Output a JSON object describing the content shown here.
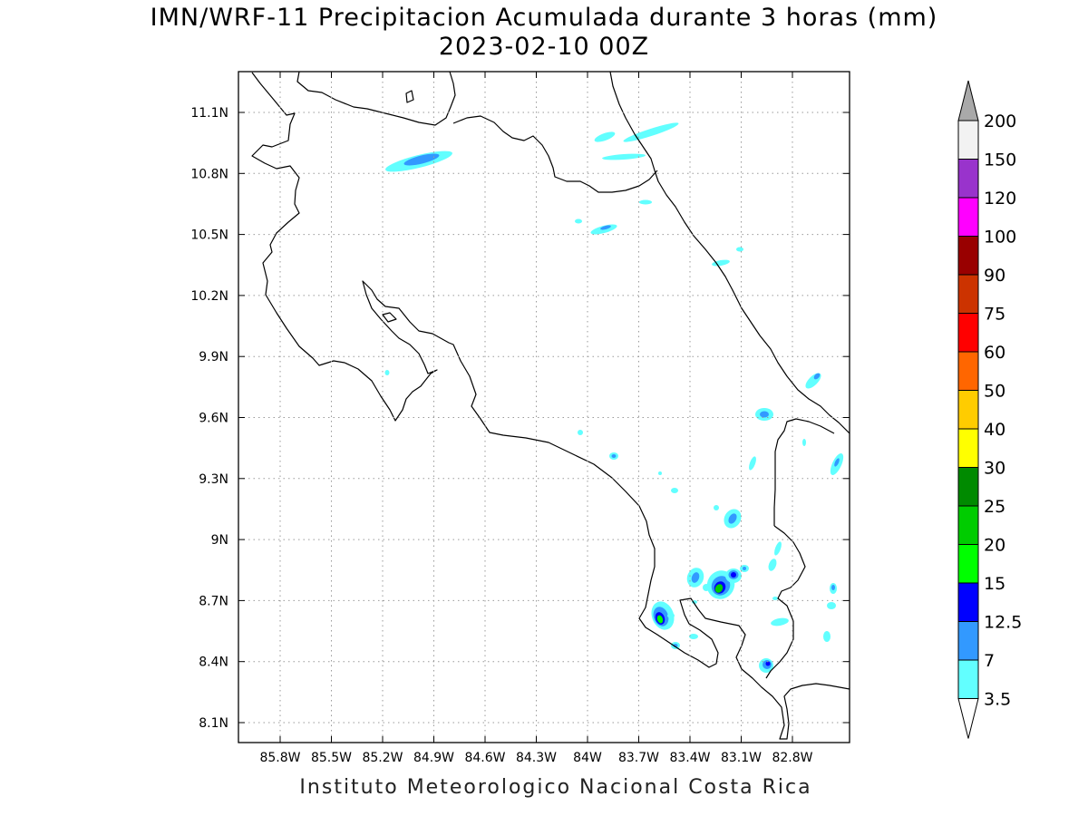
{
  "title": {
    "line1": "IMN/WRF-11 Precipitacion Acumulada durante 3 horas (mm)",
    "line2": "2023-02-10 00Z"
  },
  "credit": "Instituto Meteorologico Nacional Costa Rica",
  "map": {
    "lon_range": [
      -86.0,
      -83.0
    ],
    "lat_range": [
      8.0,
      11.3
    ],
    "x_ticks": [
      {
        "lon": -85.8,
        "label": "85.8W"
      },
      {
        "lon": -85.5,
        "label": "85.5W"
      },
      {
        "lon": -85.2,
        "label": "85.2W"
      },
      {
        "lon": -84.9,
        "label": "84.9W"
      },
      {
        "lon": -84.6,
        "label": "84.6W"
      },
      {
        "lon": -84.3,
        "label": "84.3W"
      },
      {
        "lon": -84.0,
        "label": "84W"
      },
      {
        "lon": -83.7,
        "label": "83.7W"
      },
      {
        "lon": -83.4,
        "label": "83.4W"
      },
      {
        "lon": -83.1,
        "label": "83.1W"
      },
      {
        "lon": -82.8,
        "label": "82.8W"
      }
    ],
    "y_ticks": [
      {
        "lat": 11.1,
        "label": "11.1N"
      },
      {
        "lat": 10.8,
        "label": "10.8N"
      },
      {
        "lat": 10.5,
        "label": "10.5N"
      },
      {
        "lat": 10.2,
        "label": "10.2N"
      },
      {
        "lat": 9.9,
        "label": "9.9N"
      },
      {
        "lat": 9.6,
        "label": "9.6N"
      },
      {
        "lat": 9.3,
        "label": "9.3N"
      },
      {
        "lat": 9.0,
        "label": "9N"
      },
      {
        "lat": 8.7,
        "label": "8.7N"
      },
      {
        "lat": 8.4,
        "label": "8.4N"
      },
      {
        "lat": 8.1,
        "label": "8.1N"
      }
    ],
    "grid": true,
    "grid_style": "dotted"
  },
  "colorbar": {
    "levels": [
      {
        "label": "3.5",
        "color": "#62ffff"
      },
      {
        "label": "7",
        "color": "#3299ff"
      },
      {
        "label": "12.5",
        "color": "#0000ff"
      },
      {
        "label": "15",
        "color": "#00ff00"
      },
      {
        "label": "20",
        "color": "#00cc00"
      },
      {
        "label": "25",
        "color": "#008a00"
      },
      {
        "label": "30",
        "color": "#ffff00"
      },
      {
        "label": "40",
        "color": "#ffcc00"
      },
      {
        "label": "50",
        "color": "#ff6600"
      },
      {
        "label": "60",
        "color": "#ff0000"
      },
      {
        "label": "75",
        "color": "#cc3300"
      },
      {
        "label": "90",
        "color": "#990000"
      },
      {
        "label": "100",
        "color": "#ff00ff"
      },
      {
        "label": "120",
        "color": "#9933cc"
      },
      {
        "label": "150",
        "color": "#f2f2f2"
      },
      {
        "label": "200",
        "color": "#a9a9a9"
      }
    ],
    "under_color": "#ffffff",
    "over_color": "#a9a9a9"
  },
  "precip_cells": [
    {
      "lon": -84.95,
      "lat": 10.86,
      "value": 7
    },
    {
      "lon": -83.92,
      "lat": 10.52,
      "value": 3.5
    },
    {
      "lon": -83.82,
      "lat": 9.42,
      "value": 7
    },
    {
      "lon": -83.5,
      "lat": 9.23,
      "value": 7
    },
    {
      "lon": -83.18,
      "lat": 9.1,
      "value": 7
    },
    {
      "lon": -83.43,
      "lat": 8.82,
      "value": 7
    },
    {
      "lon": -83.23,
      "lat": 8.76,
      "value": 15
    },
    {
      "lon": -83.15,
      "lat": 8.84,
      "value": 12.5
    },
    {
      "lon": -83.59,
      "lat": 8.6,
      "value": 20
    },
    {
      "lon": -83.5,
      "lat": 8.48,
      "value": 7
    },
    {
      "lon": -82.96,
      "lat": 8.39,
      "value": 12.5
    },
    {
      "lon": -82.97,
      "lat": 9.61,
      "value": 7
    },
    {
      "lon": -82.73,
      "lat": 9.78,
      "value": 7
    },
    {
      "lon": -82.58,
      "lat": 9.38,
      "value": 7
    }
  ]
}
